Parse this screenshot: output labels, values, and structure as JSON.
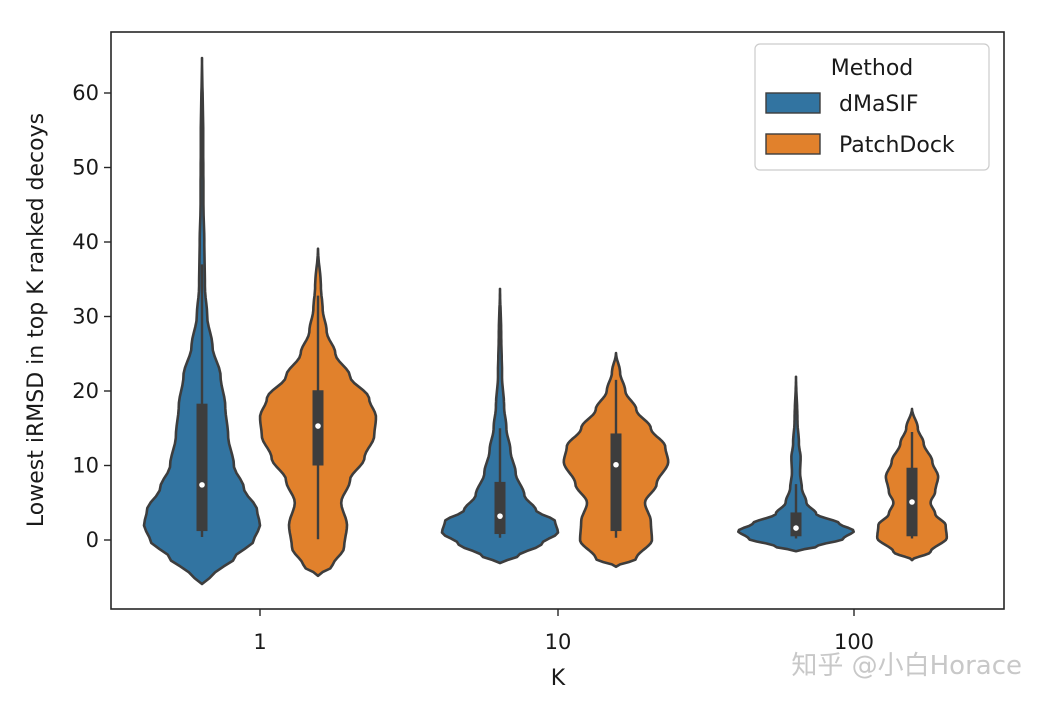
{
  "chart_data": {
    "type": "violin",
    "title": "",
    "xlabel": "K",
    "ylabel": "Lowest iRMSD in top K ranked decoys",
    "categories": [
      "1",
      "10",
      "100"
    ],
    "ylim": [
      -9,
      69
    ],
    "yticks": [
      0,
      10,
      20,
      30,
      40,
      50,
      60
    ],
    "grid": false,
    "legend": {
      "title": "Method",
      "placement": "top-right"
    },
    "series": [
      {
        "name": "dMaSIF",
        "color": "#3274a1",
        "violins": [
          {
            "category": "1",
            "median": 7.4,
            "q1": 1.2,
            "q3": 18.3,
            "whisker_low": 0.4,
            "whisker_high": 37,
            "profile": [
              {
                "y": -5.9,
                "d": 0
              },
              {
                "y": -4.5,
                "d": 0.22
              },
              {
                "y": -2.5,
                "d": 0.55
              },
              {
                "y": 0,
                "d": 0.9
              },
              {
                "y": 2,
                "d": 1.0
              },
              {
                "y": 4,
                "d": 0.95
              },
              {
                "y": 7,
                "d": 0.72
              },
              {
                "y": 10,
                "d": 0.55
              },
              {
                "y": 14,
                "d": 0.45
              },
              {
                "y": 18,
                "d": 0.4
              },
              {
                "y": 22,
                "d": 0.32
              },
              {
                "y": 26,
                "d": 0.18
              },
              {
                "y": 30,
                "d": 0.09
              },
              {
                "y": 34,
                "d": 0.05
              },
              {
                "y": 40,
                "d": 0.04
              },
              {
                "y": 45,
                "d": 0.025
              },
              {
                "y": 55,
                "d": 0.02
              },
              {
                "y": 64.7,
                "d": 0
              }
            ]
          },
          {
            "category": "10",
            "median": 3.2,
            "q1": 0.8,
            "q3": 7.8,
            "whisker_low": 0.3,
            "whisker_high": 15,
            "profile": [
              {
                "y": -3.1,
                "d": 0
              },
              {
                "y": -2.2,
                "d": 0.3
              },
              {
                "y": -0.5,
                "d": 0.72
              },
              {
                "y": 1,
                "d": 1.0
              },
              {
                "y": 2.5,
                "d": 0.95
              },
              {
                "y": 4,
                "d": 0.62
              },
              {
                "y": 6,
                "d": 0.42
              },
              {
                "y": 9,
                "d": 0.27
              },
              {
                "y": 12,
                "d": 0.18
              },
              {
                "y": 15,
                "d": 0.11
              },
              {
                "y": 18,
                "d": 0.07
              },
              {
                "y": 22,
                "d": 0.035
              },
              {
                "y": 28,
                "d": 0.02
              },
              {
                "y": 33.7,
                "d": 0
              }
            ]
          },
          {
            "category": "100",
            "median": 1.6,
            "q1": 0.5,
            "q3": 3.7,
            "whisker_low": 0.2,
            "whisker_high": 7.5,
            "profile": [
              {
                "y": -1.5,
                "d": 0
              },
              {
                "y": -0.9,
                "d": 0.35
              },
              {
                "y": 0.2,
                "d": 0.82
              },
              {
                "y": 1.2,
                "d": 1.0
              },
              {
                "y": 2.2,
                "d": 0.75
              },
              {
                "y": 3.5,
                "d": 0.35
              },
              {
                "y": 5,
                "d": 0.18
              },
              {
                "y": 7,
                "d": 0.1
              },
              {
                "y": 9,
                "d": 0.07
              },
              {
                "y": 11,
                "d": 0.08
              },
              {
                "y": 13,
                "d": 0.05
              },
              {
                "y": 16,
                "d": 0.025
              },
              {
                "y": 21.9,
                "d": 0
              }
            ]
          }
        ]
      },
      {
        "name": "PatchDock",
        "color": "#e1812c",
        "violins": [
          {
            "category": "1",
            "median": 15.3,
            "q1": 10,
            "q3": 20.1,
            "whisker_low": 0.1,
            "whisker_high": 32.8,
            "profile": [
              {
                "y": -4.8,
                "d": 0
              },
              {
                "y": -3.5,
                "d": 0.25
              },
              {
                "y": -1,
                "d": 0.45
              },
              {
                "y": 2,
                "d": 0.5
              },
              {
                "y": 5,
                "d": 0.4
              },
              {
                "y": 8,
                "d": 0.55
              },
              {
                "y": 11,
                "d": 0.8
              },
              {
                "y": 14,
                "d": 0.97
              },
              {
                "y": 16.5,
                "d": 1.0
              },
              {
                "y": 19,
                "d": 0.88
              },
              {
                "y": 22,
                "d": 0.55
              },
              {
                "y": 25,
                "d": 0.3
              },
              {
                "y": 28,
                "d": 0.15
              },
              {
                "y": 31,
                "d": 0.08
              },
              {
                "y": 34,
                "d": 0.05
              },
              {
                "y": 39.1,
                "d": 0
              }
            ]
          },
          {
            "category": "10",
            "median": 10.1,
            "q1": 1.2,
            "q3": 14.3,
            "whisker_low": 0.3,
            "whisker_high": 21.5,
            "profile": [
              {
                "y": -3.6,
                "d": 0
              },
              {
                "y": -2.5,
                "d": 0.35
              },
              {
                "y": 0,
                "d": 0.62
              },
              {
                "y": 2.5,
                "d": 0.6
              },
              {
                "y": 5,
                "d": 0.5
              },
              {
                "y": 7.5,
                "d": 0.7
              },
              {
                "y": 10.5,
                "d": 0.9
              },
              {
                "y": 12.5,
                "d": 0.85
              },
              {
                "y": 15,
                "d": 0.6
              },
              {
                "y": 17.5,
                "d": 0.35
              },
              {
                "y": 20,
                "d": 0.16
              },
              {
                "y": 22.5,
                "d": 0.07
              },
              {
                "y": 25.1,
                "d": 0
              }
            ]
          },
          {
            "category": "100",
            "median": 5.1,
            "q1": 0.5,
            "q3": 9.7,
            "whisker_low": 0.2,
            "whisker_high": 14.5,
            "profile": [
              {
                "y": -2.7,
                "d": 0
              },
              {
                "y": -1.6,
                "d": 0.32
              },
              {
                "y": 0.3,
                "d": 0.6
              },
              {
                "y": 2,
                "d": 0.58
              },
              {
                "y": 3.5,
                "d": 0.4
              },
              {
                "y": 5,
                "d": 0.32
              },
              {
                "y": 6.5,
                "d": 0.4
              },
              {
                "y": 8.5,
                "d": 0.45
              },
              {
                "y": 10.5,
                "d": 0.35
              },
              {
                "y": 13,
                "d": 0.2
              },
              {
                "y": 15,
                "d": 0.1
              },
              {
                "y": 17.6,
                "d": 0
              }
            ]
          }
        ]
      }
    ]
  },
  "watermark": "知乎 @小白Horace"
}
